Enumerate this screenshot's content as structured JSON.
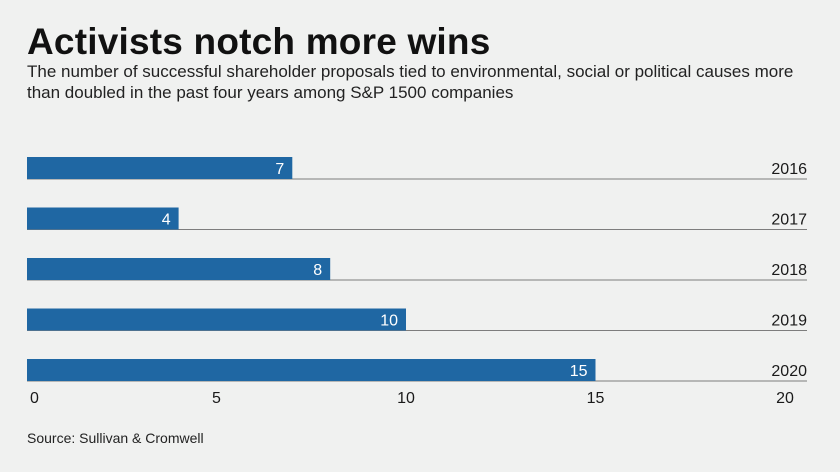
{
  "header": {
    "title": "Activists notch more wins",
    "subtitle": "The number of successful shareholder proposals tied to environmental, social or political causes more than doubled in the past four years among S&P 1500 companies"
  },
  "footer": {
    "source": "Source: Sullivan & Cromwell"
  },
  "colors": {
    "bar": "#1f67a3",
    "bar_label": "#ffffff",
    "baseline": "#7d7d7d",
    "text": "#1a1a1a"
  },
  "chart_data": {
    "type": "bar",
    "orientation": "horizontal",
    "categories": [
      "2016",
      "2017",
      "2018",
      "2019",
      "2020"
    ],
    "values": [
      7,
      4,
      8,
      10,
      15
    ],
    "title": "Activists notch more wins",
    "subtitle": "The number of successful shareholder proposals tied to environmental, social or political causes more than doubled in the past four years among S&P 1500 companies",
    "xlabel": "",
    "ylabel": "",
    "xlim": [
      0,
      20
    ],
    "xticks": [
      0,
      5,
      10,
      15,
      20
    ],
    "category_label_position": "right",
    "value_labels": "inside-bar-end",
    "grid": false,
    "legend": "none"
  }
}
